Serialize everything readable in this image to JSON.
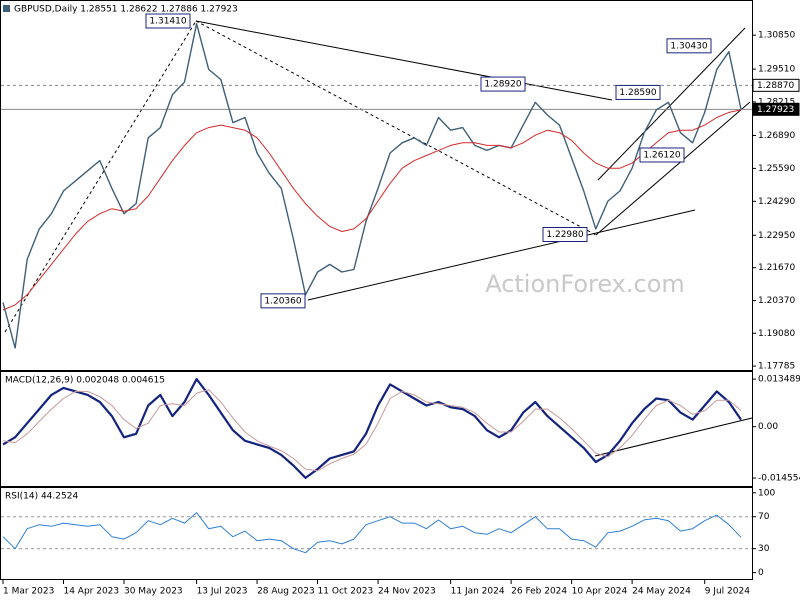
{
  "chart_data": [
    {
      "type": "line",
      "title": "GBPUSD,Daily 1.28551 1.28622 1.27886 1.27923",
      "watermark": "ActionForex.com",
      "categories": [
        "1 Mar 2023",
        null,
        null,
        null,
        null,
        "14 Apr 2023",
        null,
        null,
        null,
        null,
        "30 May 2023",
        null,
        null,
        null,
        null,
        null,
        "13 Jul 2023",
        null,
        null,
        null,
        null,
        "28 Aug 2023",
        null,
        null,
        null,
        null,
        "11 Oct 2023",
        null,
        null,
        null,
        null,
        "24 Nov 2023",
        null,
        null,
        null,
        null,
        null,
        "11 Jan 2024",
        null,
        null,
        null,
        null,
        "26 Feb 2024",
        null,
        null,
        null,
        null,
        "10 Apr 2024",
        null,
        null,
        null,
        null,
        "24 May 2024",
        null,
        null,
        null,
        null,
        null,
        "9 Jul 2024",
        null,
        null,
        null
      ],
      "series": [
        {
          "color": "#3f5f78",
          "values": [
            1.203,
            1.185,
            1.22,
            1.232,
            1.238,
            1.247,
            1.251,
            1.255,
            1.259,
            1.248,
            1.238,
            1.242,
            1.268,
            1.272,
            1.285,
            1.29,
            1.313,
            1.295,
            1.291,
            1.274,
            1.276,
            1.262,
            1.254,
            1.248,
            1.228,
            1.206,
            1.215,
            1.218,
            1.215,
            1.216,
            1.235,
            1.248,
            1.262,
            1.266,
            1.268,
            1.265,
            1.276,
            1.271,
            1.272,
            1.265,
            1.263,
            1.265,
            1.264,
            1.273,
            1.282,
            1.277,
            1.273,
            1.26,
            1.247,
            1.232,
            1.243,
            1.247,
            1.256,
            1.27,
            1.279,
            1.282,
            1.27,
            1.266,
            1.278,
            1.295,
            1.302,
            1.2792
          ]
        },
        {
          "color": "#d42a2a",
          "values": [
            1.2,
            1.202,
            1.206,
            1.212,
            1.218,
            1.224,
            1.23,
            1.235,
            1.238,
            1.24,
            1.239,
            1.24,
            1.245,
            1.252,
            1.259,
            1.265,
            1.27,
            1.272,
            1.273,
            1.272,
            1.271,
            1.268,
            1.262,
            1.255,
            1.248,
            1.242,
            1.237,
            1.233,
            1.231,
            1.232,
            1.236,
            1.243,
            1.25,
            1.256,
            1.259,
            1.261,
            1.263,
            1.265,
            1.266,
            1.266,
            1.265,
            1.265,
            1.264,
            1.266,
            1.269,
            1.271,
            1.27,
            1.267,
            1.262,
            1.258,
            1.256,
            1.256,
            1.258,
            1.262,
            1.266,
            1.27,
            1.271,
            1.271,
            1.273,
            1.276,
            1.278,
            1.279
          ]
        }
      ],
      "ylim": [
        1.1763,
        1.322
      ],
      "yticks": [
        {
          "value": 1.3085,
          "label": "1.30850"
        },
        {
          "value": 1.2951,
          "label": "1.29510"
        },
        {
          "value": 1.28215,
          "label": "1.28215"
        },
        {
          "value": 1.2689,
          "label": "1.26890"
        },
        {
          "value": 1.2559,
          "label": "1.25590"
        },
        {
          "value": 1.2429,
          "label": "1.24290"
        },
        {
          "value": 1.2295,
          "label": "1.22950"
        },
        {
          "value": 1.2167,
          "label": "1.21670"
        },
        {
          "value": 1.2037,
          "label": "1.20370"
        },
        {
          "value": 1.1908,
          "label": "1.19080"
        },
        {
          "value": 1.17785,
          "label": "1.17785"
        }
      ],
      "ref_lines": [
        {
          "value": 1.2887,
          "label": "1.28870"
        },
        {
          "value": 1.27923,
          "label": "1.27923"
        }
      ],
      "annotations": [
        {
          "value": 1.3141,
          "label": "1.31410"
        },
        {
          "value": 1.2892,
          "label": "1.28920"
        },
        {
          "value": 1.2859,
          "label": "1.28590"
        },
        {
          "value": 1.3043,
          "label": "1.30430"
        },
        {
          "value": 1.2612,
          "label": "1.26120"
        },
        {
          "value": 1.2298,
          "label": "1.22980"
        },
        {
          "value": 1.2036,
          "label": "1.20360"
        }
      ]
    },
    {
      "type": "line",
      "title": "MACD(12,26,9) 0.002048 0.004615",
      "series": [
        {
          "color": "#14237e",
          "values": [
            -0.005,
            -0.003,
            0.001,
            0.005,
            0.009,
            0.011,
            0.01,
            0.009,
            0.007,
            0.003,
            -0.003,
            -0.002,
            0.006,
            0.009,
            0.003,
            0.007,
            0.0135,
            0.009,
            0.004,
            -0.001,
            -0.004,
            -0.005,
            -0.006,
            -0.008,
            -0.011,
            -0.0145,
            -0.012,
            -0.009,
            -0.008,
            -0.007,
            -0.002,
            0.006,
            0.012,
            0.01,
            0.008,
            0.006,
            0.007,
            0.0055,
            0.005,
            0.003,
            -0.001,
            -0.003,
            -0.001,
            0.004,
            0.007,
            0.003,
            0.0,
            -0.003,
            -0.006,
            -0.01,
            -0.008,
            -0.004,
            0.001,
            0.005,
            0.008,
            0.0075,
            0.004,
            0.002,
            0.006,
            0.01,
            0.007,
            0.002
          ]
        },
        {
          "color": "#c79a9a",
          "values": [
            -0.004,
            -0.0045,
            -0.002,
            0.0015,
            0.005,
            0.008,
            0.01,
            0.01,
            0.0085,
            0.006,
            0.002,
            -0.0005,
            0.001,
            0.006,
            0.0065,
            0.006,
            0.0095,
            0.0105,
            0.007,
            0.0025,
            -0.0015,
            -0.004,
            -0.0055,
            -0.0068,
            -0.009,
            -0.012,
            -0.0125,
            -0.0105,
            -0.009,
            -0.0078,
            -0.005,
            0.001,
            0.008,
            0.01,
            0.009,
            0.007,
            0.0065,
            0.006,
            0.0055,
            0.004,
            0.001,
            -0.0015,
            -0.0015,
            0.0015,
            0.005,
            0.005,
            0.0025,
            -0.0005,
            -0.004,
            -0.0075,
            -0.0085,
            -0.006,
            -0.0025,
            0.002,
            0.006,
            0.0075,
            0.006,
            0.0035,
            0.0045,
            0.0075,
            0.0075,
            0.0046
          ]
        }
      ],
      "ylim": [
        -0.0168,
        0.0155
      ],
      "yticks": [
        0.013489,
        {
          "value": 0,
          "label": "0.00"
        },
        -0.014554
      ]
    },
    {
      "type": "line",
      "title": "RSI(14) 44.2524",
      "series": [
        {
          "color": "#2f7fd6",
          "values": [
            45,
            30,
            55,
            60,
            58,
            62,
            60,
            58,
            60,
            45,
            42,
            50,
            65,
            60,
            68,
            62,
            75,
            55,
            58,
            45,
            52,
            40,
            42,
            40,
            30,
            25,
            38,
            40,
            36,
            42,
            60,
            65,
            70,
            62,
            62,
            55,
            66,
            55,
            58,
            50,
            48,
            55,
            50,
            60,
            70,
            55,
            55,
            42,
            40,
            32,
            50,
            52,
            58,
            66,
            68,
            65,
            52,
            55,
            65,
            72,
            60,
            44.25
          ]
        }
      ],
      "ylim": [
        -8,
        106
      ],
      "yticks": [
        100,
        70,
        30,
        0
      ]
    }
  ]
}
